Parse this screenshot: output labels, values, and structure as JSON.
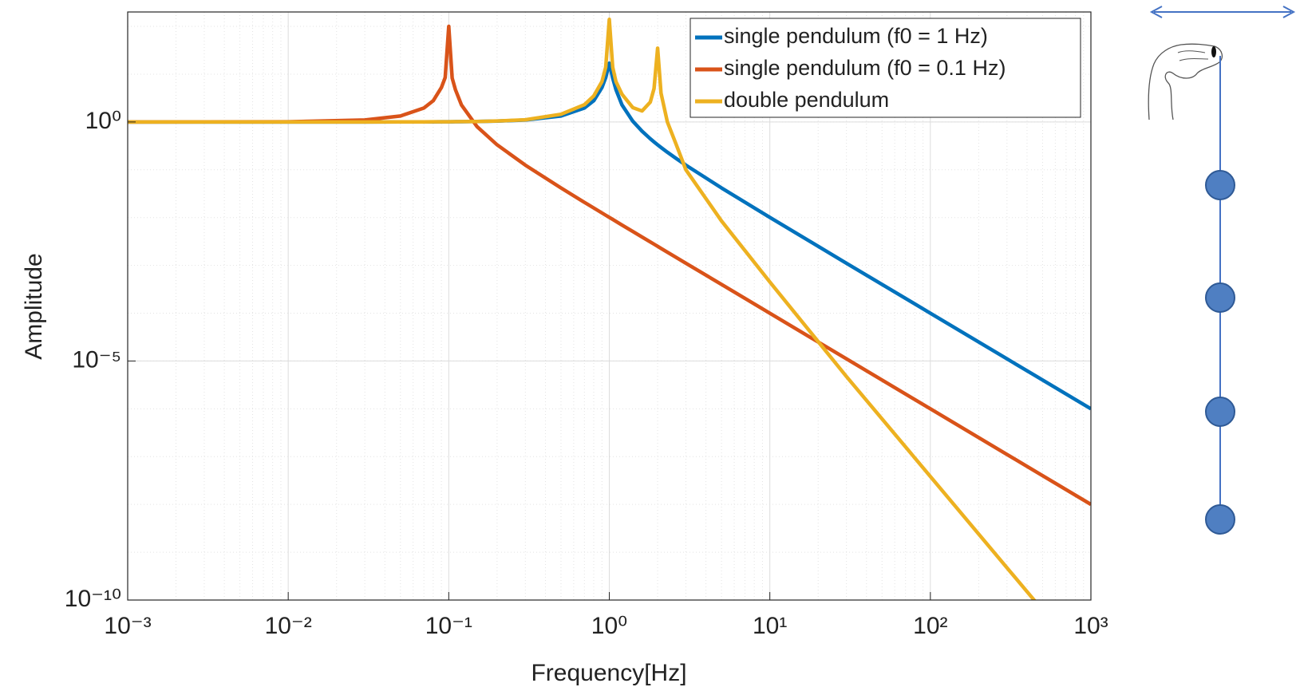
{
  "chart_data": {
    "type": "line",
    "xscale": "log",
    "yscale": "log",
    "grid": true,
    "minor_grid": true,
    "legend": "northeast",
    "xlabel": "Frequency[Hz]",
    "ylabel": "Amplitude",
    "xlim": [
      0.001,
      1000
    ],
    "ylim": [
      1e-10,
      200
    ],
    "xticks": [
      {
        "value": 0.001,
        "label": "10⁻³"
      },
      {
        "value": 0.01,
        "label": "10⁻²"
      },
      {
        "value": 0.1,
        "label": "10⁻¹"
      },
      {
        "value": 1,
        "label": "10⁰"
      },
      {
        "value": 10,
        "label": "10¹"
      },
      {
        "value": 100,
        "label": "10²"
      },
      {
        "value": 1000,
        "label": "10³"
      }
    ],
    "yticks": [
      {
        "value": 1e-10,
        "label": "10⁻¹⁰"
      },
      {
        "value": 1e-05,
        "label": "10⁻⁵"
      },
      {
        "value": 1,
        "label": "10⁰"
      }
    ],
    "x": [
      0.001,
      0.01,
      0.03,
      0.05,
      0.07,
      0.08,
      0.09,
      0.095,
      0.1,
      0.105,
      0.11,
      0.12,
      0.15,
      0.2,
      0.3,
      0.5,
      0.7,
      0.8,
      0.9,
      0.95,
      1,
      1.05,
      1.1,
      1.2,
      1.4,
      1.6,
      1.8,
      1.9,
      2,
      2.1,
      2.3,
      2.6,
      3,
      5,
      10,
      30,
      100,
      300,
      445,
      1000
    ],
    "series": [
      {
        "name": "single pendulum (f0 = 1 Hz)",
        "color": "#0072BD",
        "values": [
          1,
          1,
          1.001,
          1.0025,
          1.005,
          1.006,
          1.008,
          1.009,
          1.01,
          1.011,
          1.012,
          1.015,
          1.023,
          1.042,
          1.099,
          1.333,
          1.96,
          2.78,
          5.26,
          8.5,
          17,
          8.3,
          4.76,
          2.27,
          1.04,
          0.641,
          0.446,
          0.383,
          0.333,
          0.293,
          0.233,
          0.174,
          0.125,
          0.0417,
          0.0101,
          0.00111,
          0.0001,
          1.11e-05,
          5.05e-06,
          1e-06
        ]
      },
      {
        "name": "single pendulum (f0 = 0.1 Hz)",
        "color": "#D95319",
        "values": [
          1,
          1.01,
          1.099,
          1.333,
          1.96,
          2.78,
          5.26,
          8.5,
          100,
          8.3,
          4.76,
          2.27,
          0.8,
          0.333,
          0.125,
          0.0417,
          0.0208,
          0.0159,
          0.0125,
          0.0112,
          0.0101,
          0.00916,
          0.00833,
          0.00699,
          0.00513,
          0.00392,
          0.0031,
          0.00278,
          0.00251,
          0.00227,
          0.00189,
          0.00148,
          0.00111,
          0.0004,
          0.0001,
          1.11e-05,
          1e-06,
          1.11e-07,
          5.05e-08,
          1e-08
        ]
      },
      {
        "name": "double pendulum",
        "color": "#EDB120",
        "values": [
          1,
          1,
          1.001,
          1.003,
          1.006,
          1.007,
          1.009,
          1.01,
          1.011,
          1.012,
          1.013,
          1.017,
          1.026,
          1.047,
          1.11,
          1.45,
          2.3,
          3.5,
          7,
          14,
          140,
          14,
          7,
          3.8,
          2,
          1.7,
          2.6,
          5,
          35,
          4,
          1,
          0.35,
          0.1,
          0.0085,
          0.00045,
          4.74e-06,
          3.84e-08,
          4.74e-10,
          9.8e-11,
          3.84e-12
        ]
      }
    ]
  }
}
